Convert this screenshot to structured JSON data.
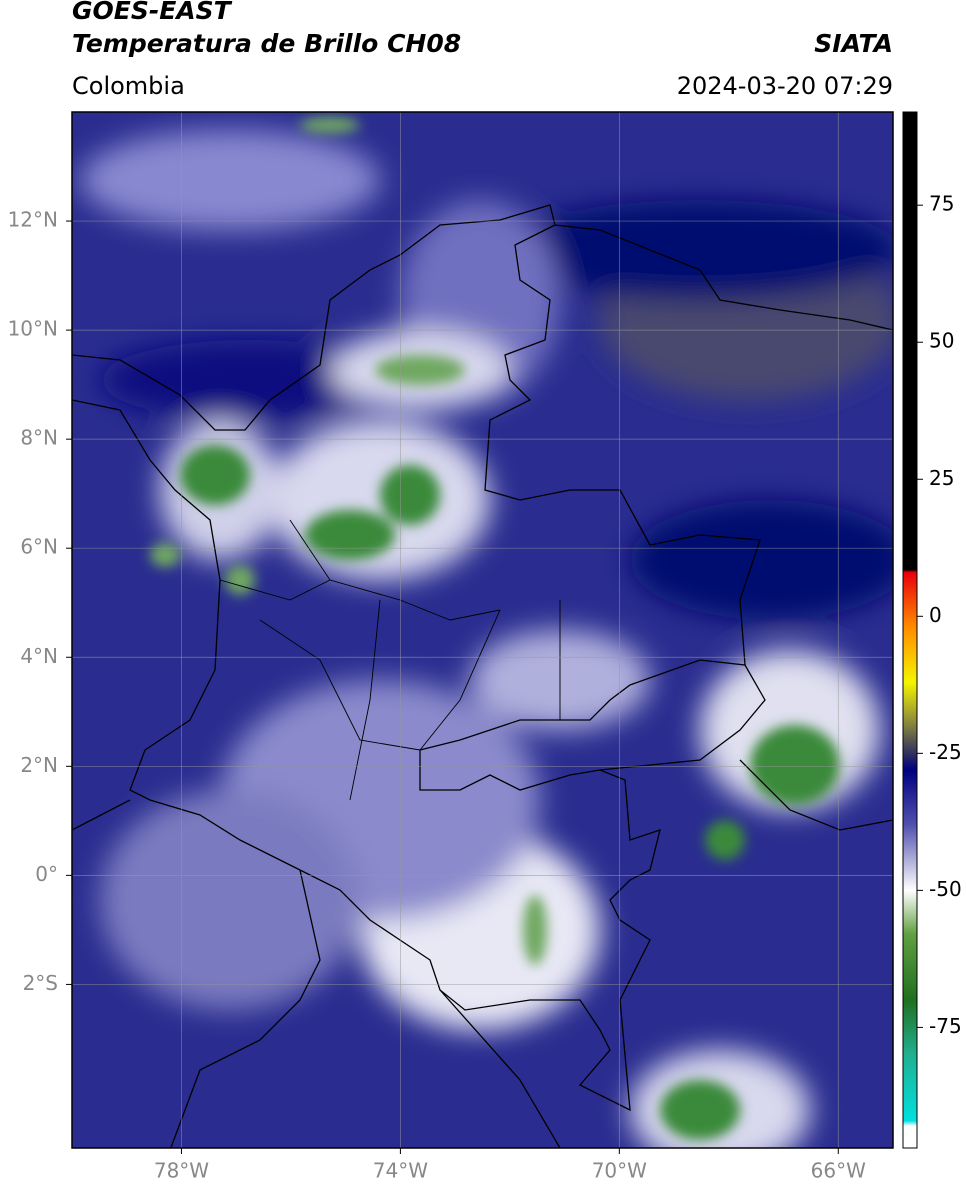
{
  "chart_data": {
    "type": "map",
    "title": "GOES-EAST",
    "subtitle": "Temperatura de Brillo CH08",
    "source": "SIATA",
    "region": "Colombia",
    "timestamp": "2024-03-20 07:29",
    "xlim": [
      -80,
      -65
    ],
    "ylim": [
      -5,
      14
    ],
    "xticks": [
      {
        "value": -78,
        "label": "78°W"
      },
      {
        "value": -74,
        "label": "74°W"
      },
      {
        "value": -70,
        "label": "70°W"
      },
      {
        "value": -66,
        "label": "66°W"
      }
    ],
    "yticks": [
      {
        "value": 12,
        "label": "12°N"
      },
      {
        "value": 10,
        "label": "10°N"
      },
      {
        "value": 8,
        "label": "8°N"
      },
      {
        "value": 6,
        "label": "6°N"
      },
      {
        "value": 4,
        "label": "4°N"
      },
      {
        "value": 2,
        "label": "2°N"
      },
      {
        "value": 0,
        "label": "0°"
      },
      {
        "value": -2,
        "label": "2°S"
      }
    ],
    "grid": true,
    "colorbar": {
      "clim": [
        -97,
        92
      ],
      "ticks": [
        75,
        50,
        25,
        0,
        -25,
        -50,
        -75
      ],
      "colormap": [
        {
          "value": 92,
          "color": "#000000"
        },
        {
          "value": 8.5,
          "color": "#000000"
        },
        {
          "value": 8,
          "color": "#e8000b"
        },
        {
          "value": -2,
          "color": "#ff8c00"
        },
        {
          "value": -12,
          "color": "#f5f500"
        },
        {
          "value": -20,
          "color": "#808040"
        },
        {
          "value": -25,
          "color": "#303060"
        },
        {
          "value": -28,
          "color": "#000080"
        },
        {
          "value": -38,
          "color": "#5050b0"
        },
        {
          "value": -50,
          "color": "#ffffff"
        },
        {
          "value": -58,
          "color": "#60a040"
        },
        {
          "value": -70,
          "color": "#207020"
        },
        {
          "value": -80,
          "color": "#20b090"
        },
        {
          "value": -92,
          "color": "#00e0e0"
        },
        {
          "value": -93,
          "color": "#ffffff"
        },
        {
          "value": -97,
          "color": "#ffffff"
        }
      ]
    }
  }
}
